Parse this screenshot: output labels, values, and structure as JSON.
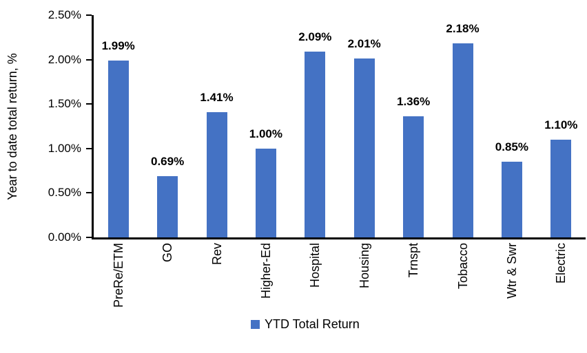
{
  "chart_data": {
    "type": "bar",
    "categories": [
      "PreRe/ETM",
      "GO",
      "Rev",
      "Higher-Ed",
      "Hospital",
      "Housing",
      "Trnspt",
      "Tobacco",
      "Wtr & Swr",
      "Electric"
    ],
    "values": [
      1.99,
      0.69,
      1.41,
      1.0,
      2.09,
      2.01,
      1.36,
      2.18,
      0.85,
      1.1
    ],
    "data_labels": [
      "1.99%",
      "0.69%",
      "1.41%",
      "1.00%",
      "2.09%",
      "2.01%",
      "1.36%",
      "2.18%",
      "0.85%",
      "1.10%"
    ],
    "ylabel": "Year to date total return, %",
    "ylim": [
      0,
      2.5
    ],
    "y_tick_step": 0.5,
    "y_tick_labels": [
      "0.00%",
      "0.50%",
      "1.00%",
      "1.50%",
      "2.00%",
      "2.50%"
    ],
    "legend": [
      "YTD Total Return"
    ],
    "legend_position": "bottom",
    "grid": false,
    "bar_color": "#4472C4",
    "axis_color": "#000000",
    "text_color": "#000000"
  }
}
